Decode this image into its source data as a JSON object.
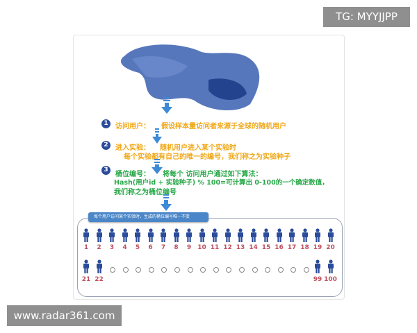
{
  "watermark_top": "TG: MYYJJPP",
  "watermark_bottom": "www.radar361.com",
  "colors": {
    "step1": "#f0a818",
    "step2": "#f0a818",
    "step3": "#2aa84a",
    "person": "#2b4c9a",
    "number": "#c05060",
    "banner": "#4a86c8"
  },
  "steps": [
    {
      "num": "1",
      "title": "访问用户：",
      "lines": [
        "假设样本量访问者来源于全球的随机用户"
      ]
    },
    {
      "num": "2",
      "title": "进入实验：",
      "lines": [
        "随机用户进入某个实验时",
        "每个实验都有自己的唯一的编号，我们称之为实验种子"
      ]
    },
    {
      "num": "3",
      "title": "桶位编号：",
      "lines": [
        "将每个 访问用户通过如下算法：",
        "Hash(用户id + 实验种子) % 100=可计算出 0-100的一个确定数值，",
        "我们称之为桶位编号"
      ]
    }
  ],
  "banner": "每个用户访问某个实验时，生成的桶位编号唯一不变",
  "row1": [
    "1",
    "2",
    "3",
    "4",
    "5",
    "6",
    "7",
    "8",
    "9",
    "10",
    "11",
    "12",
    "13",
    "14",
    "15",
    "16",
    "17",
    "18",
    "19",
    "20"
  ],
  "row2_start": [
    "21",
    "22"
  ],
  "row2_end": [
    "99",
    "100"
  ],
  "ellipsis_count": 16
}
